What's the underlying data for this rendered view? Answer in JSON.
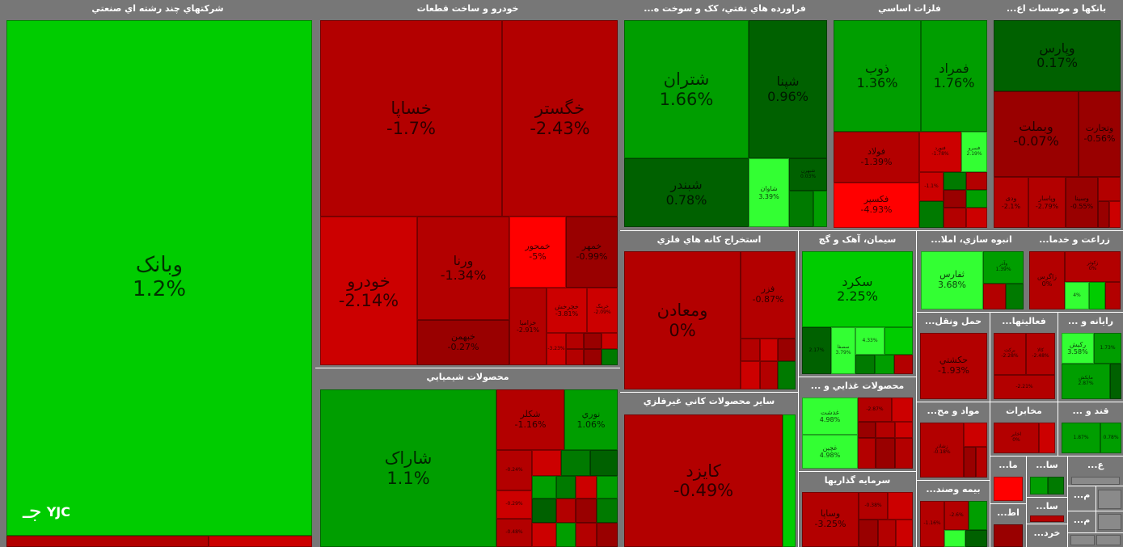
{
  "sectors": {
    "multi": "شرکتهاي چند رشته اي صنعتي",
    "auto": "خودرو و ساخت قطعات",
    "refinery": "فراورده هاي نفتي، کک و سوخت ه...",
    "metals": "فلزات اساسي",
    "banks": "بانکها و موسسات اع...",
    "chem": "محصولات شيميايي",
    "mining": "استخراج کانه هاي فلزي",
    "cement": "سيمان، آهک و گچ",
    "mass": "انبوه سازي، املا...",
    "agri": "زراعت و خدما...",
    "nonmetal": "ساير محصولات کاني غيرفلزي",
    "food": "محصولات غذايي و ...",
    "transport": "حمل ونقل...",
    "activity": "فعاليتها...",
    "computer": "رايانه و ...",
    "invest": "سرمايه گذاريها",
    "material": "مواد و مح...",
    "telecom": "مخابرات",
    "sugar": "قند و ...",
    "s1": "سا...",
    "s2": "ع...",
    "insurance": "بيمه وصند...",
    "s3": "ما...",
    "s4": "م...",
    "s5": "سا...",
    "s6": "اط...",
    "s7": "م...",
    "s8": "خرد..."
  },
  "tiles": {
    "vabank": {
      "name": "وبانک",
      "pct": "1.2%"
    },
    "khsapa": {
      "name": "خساپا",
      "pct": "-1.7%"
    },
    "khgostar": {
      "name": "خگستر",
      "pct": "-2.43%"
    },
    "khodro": {
      "name": "خودرو",
      "pct": "-2.14%"
    },
    "varena": {
      "name": "ورنا",
      "pct": "-1.34%"
    },
    "khamhor": {
      "name": "خمحور",
      "pct": "-5%"
    },
    "khmehvar": {
      "name": "خمهر",
      "pct": "-0.99%"
    },
    "khbahman": {
      "name": "خبهمن",
      "pct": "-0.27%"
    },
    "khzamia": {
      "name": "خزاميا",
      "pct": "-2.91%"
    },
    "khcharkh": {
      "name": "خچرخش",
      "pct": "-3.81%"
    },
    "khrin": {
      "name": "خرينگ",
      "pct": "-2.09%"
    },
    "khsmall1": {
      "name": "خكار",
      "pct": "-3.23%"
    },
    "shtran": {
      "name": "شتران",
      "pct": "1.66%"
    },
    "shpena": {
      "name": "شپنا",
      "pct": "0.96%"
    },
    "shbandar": {
      "name": "شبندر",
      "pct": "0.78%"
    },
    "shavan": {
      "name": "شاوان",
      "pct": "3.39%"
    },
    "shsmall": {
      "name": "شبهرن",
      "pct": "0.03%"
    },
    "zob": {
      "name": "ذوب",
      "pct": "1.36%"
    },
    "fmorad": {
      "name": "فمراد",
      "pct": "1.76%"
    },
    "fouland": {
      "name": "فولاد",
      "pct": "-1.39%"
    },
    "fnoor": {
      "name": "فنورد",
      "pct": "-1.78%"
    },
    "fsarv": {
      "name": "فسرو",
      "pct": "2.19%"
    },
    "fkhuz": {
      "name": "فخوز",
      "pct": "-1.1%"
    },
    "fkasper": {
      "name": "فکسپر",
      "pct": "-4.93%"
    },
    "vpars": {
      "name": "وپارس",
      "pct": "0.17%"
    },
    "vbmellat": {
      "name": "وبملت",
      "pct": "-0.07%"
    },
    "vtejarat": {
      "name": "وتجارت",
      "pct": "-0.56%"
    },
    "vdey": {
      "name": "ودی",
      "pct": "-2.1%"
    },
    "vpasar": {
      "name": "وپاسار",
      "pct": "-2.79%"
    },
    "vsina": {
      "name": "وسينا",
      "pct": "-0.55%"
    },
    "sharak": {
      "name": "شاراک",
      "pct": "1.1%"
    },
    "shkolor": {
      "name": "شکلر",
      "pct": "-1.16%"
    },
    "nori": {
      "name": "نوري",
      "pct": "1.06%"
    },
    "shcsmall1": {
      "name": "شپديس",
      "pct": "-0.24%"
    },
    "shcsmall2": {
      "name": "شيراز",
      "pct": "-0.29%"
    },
    "shcsmall3": {
      "name": "شفن",
      "pct": "-0.48%"
    },
    "vmaaden": {
      "name": "ومعادن",
      "pct": "0%"
    },
    "fazar": {
      "name": "فزر",
      "pct": "-0.87%"
    },
    "sekord": {
      "name": "سکرد",
      "pct": "2.25%"
    },
    "sshomal": {
      "name": "سشمال",
      "pct": "2.17%"
    },
    "sesafa": {
      "name": "سصفا",
      "pct": "3.79%"
    },
    "sbahar": {
      "name": "سهرمز",
      "pct": "4.33%"
    },
    "thfars": {
      "name": "ثفارس",
      "pct": "3.68%"
    },
    "thashd": {
      "name": "وآذر",
      "pct": "1.39%"
    },
    "zagros": {
      "name": "زاگرس",
      "pct": "0%"
    },
    "zkosar": {
      "name": "زکوثر",
      "pct": "0%"
    },
    "zbina": {
      "name": "زبينا",
      "pct": "4%"
    },
    "kayzd": {
      "name": "کايزد",
      "pct": "-0.49%"
    },
    "ghadesh": {
      "name": "غدشت",
      "pct": "4.98%"
    },
    "ghchin": {
      "name": "غچين",
      "pct": "4.98%"
    },
    "ghsmall": {
      "name": "غپينو",
      "pct": "-2.87%"
    },
    "hkeshti": {
      "name": "حکشتي",
      "pct": "-1.93%"
    },
    "bazri": {
      "name": "برکت",
      "pct": "-2.28%"
    },
    "kala": {
      "name": "کالا",
      "pct": "-2.48%"
    },
    "tmarkaz": {
      "name": "ثامان",
      "pct": "-2.21%"
    },
    "rkish": {
      "name": "رکيش",
      "pct": "3.58%"
    },
    "sistem": {
      "name": "سيستم",
      "pct": "1.73%"
    },
    "mapna": {
      "name": "مايكش",
      "pct": "2.87%"
    },
    "vsapa": {
      "name": "وساپا",
      "pct": "-3.25%"
    },
    "vsmall": {
      "name": "وسپه",
      "pct": "-0.38%"
    },
    "shabdar": {
      "name": "زشاذر",
      "pct": "-0.18%"
    },
    "akhaber": {
      "name": "اخابر",
      "pct": "0%"
    },
    "qshirin": {
      "name": "قثابت",
      "pct": "1.87%"
    },
    "qsmall": {
      "name": "قهكمت",
      "pct": "0.78%"
    },
    "bime": {
      "name": "البرز",
      "pct": "-1.16%"
    },
    "bime2": {
      "name": "بپاس",
      "pct": "-2.6%"
    }
  },
  "logo": {
    "text": "YJC",
    "mark": "جـ"
  }
}
